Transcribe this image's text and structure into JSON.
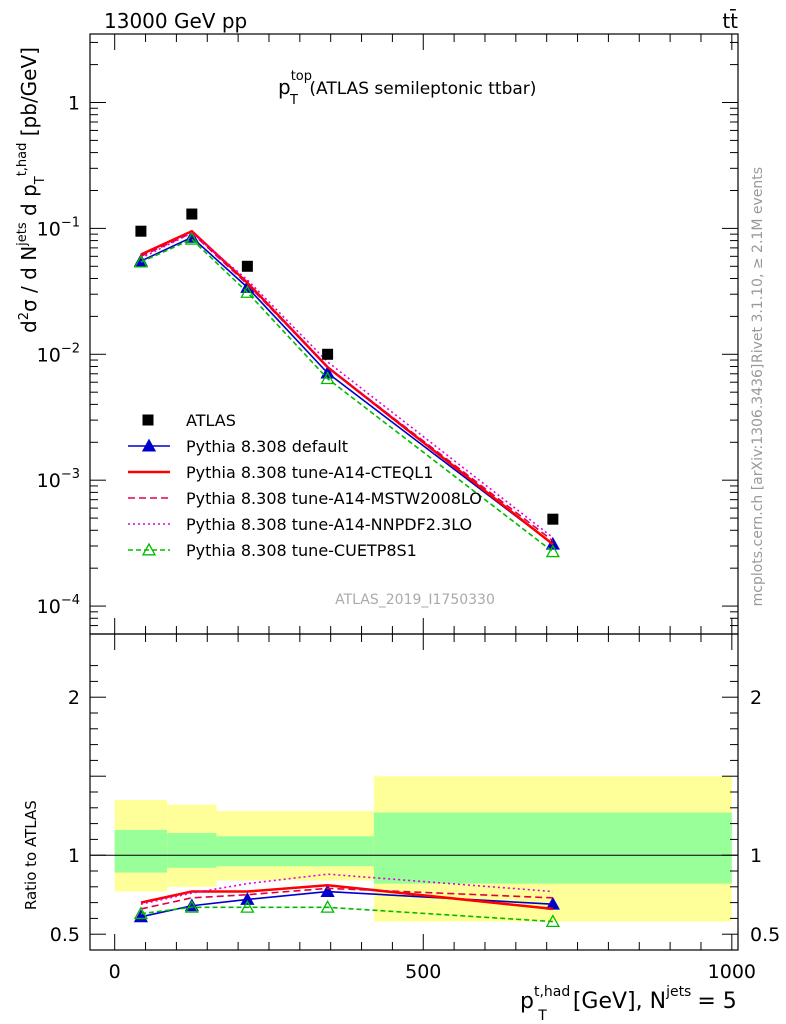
{
  "header": {
    "energy_label": "13000 GeV pp",
    "process_label": "tt̄"
  },
  "chart_data": [
    {
      "type": "line",
      "panel": "main",
      "title_main": "p",
      "title_sup": "top",
      "title_sub": "T",
      "title_suffix": "(ATLAS semileptonic ttbar)",
      "ylabel": "d²σ / d N^jets d p_T^t,had [pb/GeV]",
      "yscale": "log",
      "ylim": [
        6e-05,
        3.5
      ],
      "xlim": [
        -40,
        1010
      ],
      "ytick_labels": [
        {
          "value": 1,
          "base": "1",
          "exp": ""
        },
        {
          "value": 0.1,
          "base": "10",
          "exp": "−1"
        },
        {
          "value": 0.01,
          "base": "10",
          "exp": "−2"
        },
        {
          "value": 0.001,
          "base": "10",
          "exp": "−3"
        },
        {
          "value": 0.0001,
          "base": "10",
          "exp": "−4"
        }
      ],
      "analysis_label": "ATLAS_2019_I1750330",
      "legend_position": "bottom-left",
      "data": {
        "name": "ATLAS",
        "x": [
          42.5,
          125,
          215,
          345,
          710
        ],
        "y": [
          0.095,
          0.13,
          0.05,
          0.01,
          0.00049
        ]
      },
      "series": [
        {
          "name": "Pythia 8.308 default",
          "color": "#0000cc",
          "dash": "",
          "marker": "triangle-filled",
          "x": [
            42.5,
            125,
            215,
            345,
            710
          ],
          "y": [
            0.055,
            0.085,
            0.034,
            0.0071,
            0.00031
          ]
        },
        {
          "name": "Pythia 8.308 tune-A14-CTEQL1",
          "color": "#ff0000",
          "dash": "",
          "marker": "none",
          "x": [
            42.5,
            125,
            215,
            345,
            710
          ],
          "y": [
            0.062,
            0.095,
            0.037,
            0.0079,
            0.00031
          ]
        },
        {
          "name": "Pythia 8.308 tune-A14-MSTW2008LO",
          "color": "#e0004a",
          "dash": "7,4",
          "marker": "none",
          "x": [
            42.5,
            125,
            215,
            345,
            710
          ],
          "y": [
            0.06,
            0.092,
            0.036,
            0.0079,
            0.00033
          ]
        },
        {
          "name": "Pythia 8.308 tune-A14-NNPDF2.3LO",
          "color": "#e000e0",
          "dash": "2,3",
          "marker": "none",
          "x": [
            42.5,
            125,
            215,
            345,
            710
          ],
          "y": [
            0.058,
            0.092,
            0.039,
            0.0087,
            0.00035
          ]
        },
        {
          "name": "Pythia 8.308 tune-CUETP8S1",
          "color": "#00bb00",
          "dash": "5,3",
          "marker": "triangle-open",
          "x": [
            42.5,
            125,
            215,
            345,
            710
          ],
          "y": [
            0.054,
            0.082,
            0.031,
            0.0064,
            0.00027
          ]
        }
      ]
    },
    {
      "type": "line",
      "panel": "ratio",
      "ylabel": "Ratio to ATLAS",
      "ylim": [
        0.4,
        2.4
      ],
      "xlim": [
        -40,
        1010
      ],
      "ytick_labels": [
        0.5,
        1,
        2
      ],
      "xtick_labels": [
        0,
        500,
        1000
      ],
      "xlabel_main": "p",
      "xlabel_sup": "t,had",
      "xlabel_sub": "T",
      "xlabel_mid": "[GeV], N",
      "xlabel_sup2": "jets",
      "xlabel_end": "= 5",
      "bands": [
        {
          "x0": 0,
          "x1": 85,
          "y_low": 0.77,
          "y_high": 1.35,
          "inner_low": 0.89,
          "inner_high": 1.16
        },
        {
          "x0": 85,
          "x1": 165,
          "y_low": 0.8,
          "y_high": 1.32,
          "inner_low": 0.92,
          "inner_high": 1.14
        },
        {
          "x0": 165,
          "x1": 420,
          "y_low": 0.84,
          "y_high": 1.28,
          "inner_low": 0.93,
          "inner_high": 1.12
        },
        {
          "x0": 420,
          "x1": 1000,
          "y_low": 0.58,
          "y_high": 1.5,
          "inner_low": 0.82,
          "inner_high": 1.27
        }
      ],
      "series": [
        {
          "name": "Pythia 8.308 default",
          "x": [
            42.5,
            125,
            215,
            345,
            710
          ],
          "y": [
            0.61,
            0.68,
            0.72,
            0.77,
            0.69
          ]
        },
        {
          "name": "Pythia 8.308 tune-A14-CTEQL1",
          "x": [
            42.5,
            125,
            215,
            345,
            710
          ],
          "y": [
            0.7,
            0.77,
            0.77,
            0.81,
            0.66
          ]
        },
        {
          "name": "Pythia 8.308 tune-A14-MSTW2008LO",
          "x": [
            42.5,
            125,
            215,
            345,
            710
          ],
          "y": [
            0.66,
            0.73,
            0.75,
            0.79,
            0.73
          ]
        },
        {
          "name": "Pythia 8.308 tune-A14-NNPDF2.3LO",
          "x": [
            42.5,
            125,
            215,
            345,
            710
          ],
          "y": [
            0.69,
            0.76,
            0.82,
            0.88,
            0.77
          ]
        },
        {
          "name": "Pythia 8.308 tune-CUETP8S1",
          "x": [
            42.5,
            125,
            215,
            345,
            710
          ],
          "y": [
            0.63,
            0.67,
            0.67,
            0.67,
            0.58
          ]
        }
      ]
    }
  ],
  "side_labels": {
    "rivet": "Rivet 3.1.10, ≥ 2.1M events",
    "mcplots": "mcplots.cern.ch [arXiv:1306.3436]"
  },
  "colors": {
    "band_outer": "#ffff99",
    "band_inner": "#99ff99"
  }
}
